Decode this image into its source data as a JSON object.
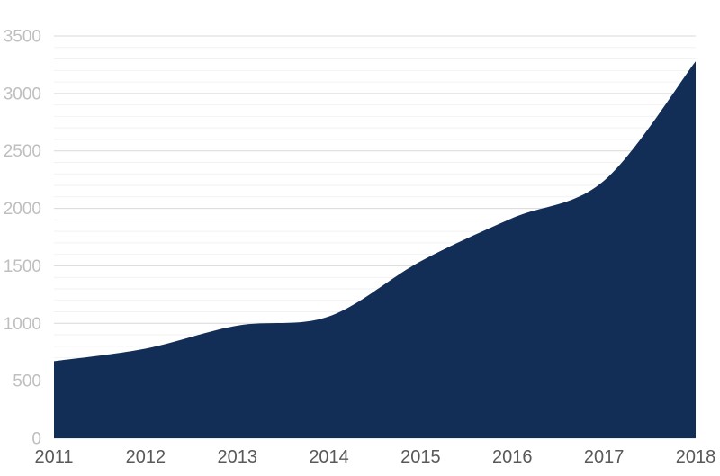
{
  "chart_data": {
    "type": "area",
    "title": "",
    "xlabel": "",
    "ylabel": "",
    "categories": [
      "2011",
      "2012",
      "2013",
      "2014",
      "2015",
      "2016",
      "2017",
      "2018"
    ],
    "series": [
      {
        "name": "series-1",
        "values": [
          670,
          780,
          980,
          1060,
          1540,
          1915,
          2240,
          3280
        ]
      }
    ],
    "ylim": [
      0,
      3500
    ],
    "y_major_step": 500,
    "y_minor_step": 100,
    "y_tick_labels": [
      "0",
      "500",
      "1000",
      "1500",
      "2000",
      "2500",
      "3000",
      "3500"
    ],
    "grid": "on",
    "legend": "none",
    "line_smoothing": true,
    "colors": {
      "area_fill": "#132E56",
      "major_gridline": "#D9D9D9",
      "minor_gridline": "#F2F2F2",
      "y_tick_label": "#BFBFBF",
      "x_tick_label": "#595959",
      "background": "#FFFFFF"
    }
  }
}
